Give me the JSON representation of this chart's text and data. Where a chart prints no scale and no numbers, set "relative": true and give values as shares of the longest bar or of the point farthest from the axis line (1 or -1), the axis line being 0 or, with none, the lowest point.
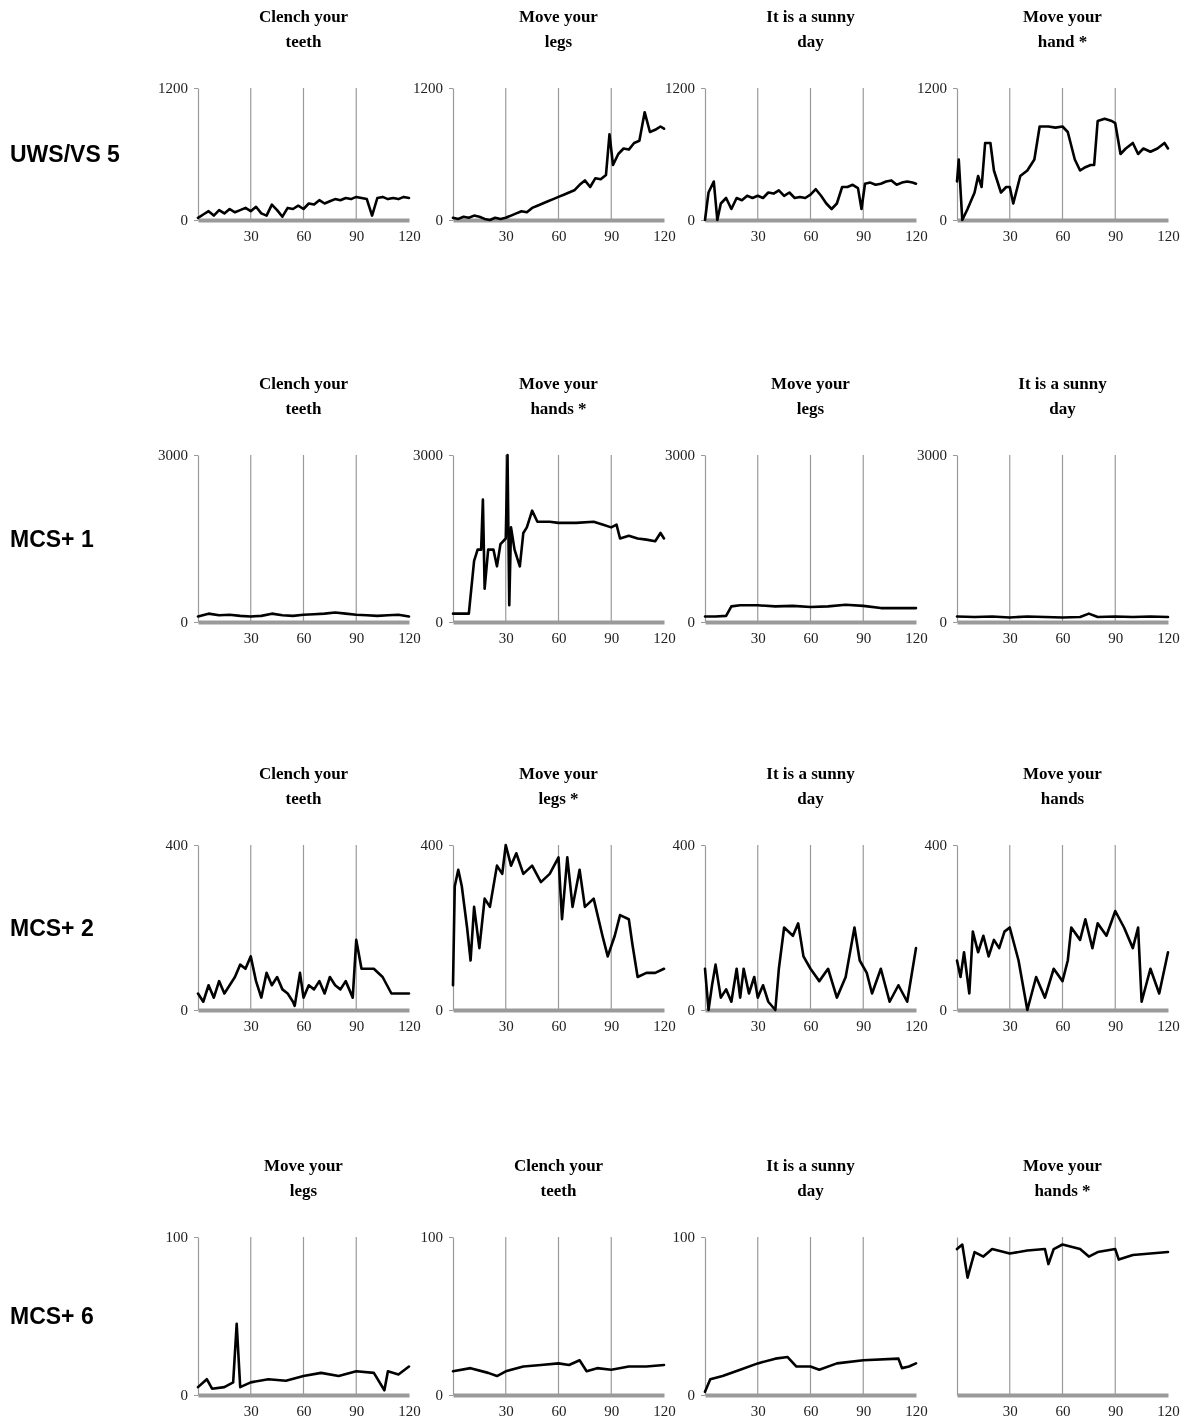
{
  "chart_data": [
    {
      "type": "line",
      "title": "Clench your teeth",
      "ylabel": "UWS/VS 5",
      "color": "#000000",
      "grid": "x",
      "xlim": [
        0,
        120
      ],
      "xticks": [
        30,
        60,
        90,
        120
      ],
      "ylim": [
        0,
        1200
      ],
      "yticks": [
        0,
        1200
      ],
      "x": [
        0,
        3,
        6,
        9,
        12,
        15,
        18,
        21,
        24,
        27,
        30,
        33,
        36,
        39,
        42,
        45,
        48,
        51,
        54,
        57,
        60,
        63,
        66,
        69,
        72,
        75,
        78,
        81,
        84,
        87,
        90,
        93,
        96,
        99,
        102,
        105,
        108,
        111,
        114,
        117,
        120
      ],
      "values": [
        20,
        50,
        80,
        40,
        90,
        60,
        100,
        70,
        90,
        110,
        80,
        120,
        60,
        40,
        140,
        90,
        30,
        110,
        100,
        130,
        100,
        150,
        140,
        180,
        150,
        170,
        190,
        180,
        200,
        190,
        210,
        200,
        190,
        40,
        200,
        210,
        190,
        200,
        190,
        210,
        200
      ]
    },
    {
      "type": "line",
      "title": "Move your legs",
      "color": "#000000",
      "grid": "x",
      "xlim": [
        0,
        120
      ],
      "xticks": [
        30,
        60,
        90,
        120
      ],
      "ylim": [
        0,
        1200
      ],
      "yticks": [
        0,
        1200
      ],
      "x": [
        0,
        3,
        6,
        9,
        12,
        15,
        18,
        21,
        24,
        27,
        30,
        33,
        36,
        39,
        42,
        45,
        48,
        51,
        54,
        57,
        60,
        63,
        66,
        69,
        72,
        75,
        78,
        81,
        84,
        87,
        89,
        91,
        94,
        97,
        100,
        103,
        106,
        109,
        112,
        115,
        118,
        120
      ],
      "values": [
        20,
        10,
        30,
        20,
        40,
        30,
        10,
        0,
        20,
        10,
        20,
        40,
        60,
        80,
        70,
        110,
        130,
        150,
        170,
        190,
        210,
        230,
        250,
        270,
        320,
        360,
        300,
        380,
        370,
        410,
        780,
        500,
        600,
        650,
        640,
        700,
        720,
        980,
        800,
        820,
        850,
        830
      ]
    },
    {
      "type": "line",
      "title": "It is a sunny day",
      "color": "#000000",
      "grid": "x",
      "xlim": [
        0,
        120
      ],
      "xticks": [
        30,
        60,
        90,
        120
      ],
      "ylim": [
        0,
        1200
      ],
      "yticks": [
        0,
        1200
      ],
      "x": [
        0,
        2,
        5,
        7,
        9,
        12,
        15,
        18,
        21,
        24,
        27,
        30,
        33,
        36,
        39,
        42,
        45,
        48,
        51,
        54,
        57,
        60,
        63,
        66,
        69,
        72,
        75,
        78,
        81,
        84,
        87,
        89,
        91,
        94,
        97,
        100,
        103,
        106,
        109,
        112,
        115,
        118,
        120
      ],
      "values": [
        0,
        250,
        350,
        0,
        150,
        200,
        100,
        200,
        180,
        220,
        200,
        220,
        200,
        250,
        240,
        270,
        220,
        250,
        200,
        210,
        200,
        230,
        280,
        220,
        150,
        100,
        150,
        300,
        300,
        320,
        290,
        100,
        330,
        340,
        320,
        330,
        350,
        360,
        320,
        340,
        350,
        340,
        330
      ]
    },
    {
      "type": "line",
      "title": "Move your hand  *",
      "color": "#000000",
      "grid": "x",
      "xlim": [
        0,
        120
      ],
      "xticks": [
        30,
        60,
        90,
        120
      ],
      "ylim": [
        0,
        1200
      ],
      "yticks": [
        0,
        1200
      ],
      "x": [
        0,
        1,
        3,
        6,
        10,
        12,
        14,
        16,
        19,
        21,
        25,
        28,
        30,
        32,
        36,
        40,
        44,
        47,
        52,
        56,
        60,
        63,
        67,
        70,
        73,
        76,
        78,
        80,
        84,
        88,
        90,
        93,
        96,
        100,
        103,
        106,
        110,
        114,
        118,
        120
      ],
      "values": [
        350,
        550,
        0,
        100,
        250,
        400,
        300,
        700,
        700,
        450,
        250,
        300,
        300,
        150,
        400,
        450,
        550,
        850,
        850,
        840,
        850,
        800,
        550,
        450,
        480,
        500,
        500,
        900,
        920,
        900,
        880,
        600,
        650,
        700,
        600,
        650,
        620,
        650,
        700,
        650
      ]
    },
    {
      "type": "line",
      "title": "Clench your teeth",
      "ylabel": "MCS+ 1",
      "color": "#000000",
      "grid": "x",
      "xlim": [
        0,
        120
      ],
      "xticks": [
        30,
        60,
        90,
        120
      ],
      "ylim": [
        0,
        3000
      ],
      "yticks": [
        0,
        3000
      ],
      "x": [
        0,
        6,
        12,
        18,
        24,
        30,
        36,
        42,
        48,
        54,
        60,
        66,
        72,
        78,
        84,
        90,
        96,
        102,
        108,
        114,
        120
      ],
      "values": [
        100,
        150,
        120,
        130,
        110,
        100,
        110,
        150,
        120,
        110,
        130,
        140,
        150,
        170,
        150,
        130,
        120,
        110,
        120,
        130,
        100
      ]
    },
    {
      "type": "line",
      "title": "Move your hands *",
      "color": "#000000",
      "grid": "x",
      "xlim": [
        0,
        120
      ],
      "xticks": [
        30,
        60,
        90,
        120
      ],
      "ylim": [
        0,
        3000
      ],
      "yticks": [
        0,
        3000
      ],
      "x": [
        0,
        5,
        9,
        12,
        14,
        16,
        17,
        18,
        20,
        23,
        25,
        27,
        30,
        31,
        32,
        33,
        35,
        38,
        40,
        42,
        45,
        48,
        55,
        60,
        70,
        80,
        85,
        90,
        93,
        95,
        100,
        105,
        110,
        115,
        118,
        120
      ],
      "values": [
        150,
        150,
        150,
        1100,
        1300,
        1300,
        2200,
        600,
        1300,
        1300,
        1000,
        1400,
        1500,
        3000,
        300,
        1700,
        1300,
        1000,
        1600,
        1700,
        2000,
        1800,
        1800,
        1780,
        1780,
        1800,
        1750,
        1700,
        1750,
        1500,
        1550,
        1500,
        1480,
        1450,
        1600,
        1500
      ]
    },
    {
      "type": "line",
      "title": "Move your legs",
      "color": "#000000",
      "grid": "x",
      "xlim": [
        0,
        120
      ],
      "xticks": [
        30,
        60,
        90,
        120
      ],
      "ylim": [
        0,
        3000
      ],
      "yticks": [
        0,
        3000
      ],
      "x": [
        0,
        6,
        12,
        15,
        20,
        30,
        40,
        50,
        60,
        70,
        80,
        90,
        100,
        110,
        120
      ],
      "values": [
        100,
        100,
        110,
        280,
        300,
        300,
        280,
        290,
        270,
        280,
        310,
        290,
        250,
        250,
        250
      ]
    },
    {
      "type": "line",
      "title": "It is a sunny day",
      "color": "#000000",
      "grid": "x",
      "xlim": [
        0,
        120
      ],
      "xticks": [
        30,
        60,
        90,
        120
      ],
      "ylim": [
        0,
        3000
      ],
      "yticks": [
        0,
        3000
      ],
      "x": [
        0,
        10,
        20,
        30,
        40,
        50,
        60,
        70,
        75,
        80,
        90,
        100,
        110,
        120
      ],
      "values": [
        100,
        90,
        100,
        80,
        100,
        90,
        80,
        90,
        150,
        90,
        100,
        90,
        100,
        90
      ]
    },
    {
      "type": "line",
      "title": "Clench your teeth",
      "ylabel": "MCS+ 2",
      "color": "#000000",
      "grid": "x",
      "xlim": [
        0,
        120
      ],
      "xticks": [
        30,
        60,
        90,
        120
      ],
      "ylim": [
        0,
        400
      ],
      "yticks": [
        0,
        400
      ],
      "x": [
        0,
        3,
        6,
        9,
        12,
        15,
        18,
        21,
        24,
        27,
        30,
        33,
        36,
        39,
        42,
        45,
        48,
        51,
        54,
        55,
        58,
        60,
        63,
        66,
        69,
        72,
        75,
        78,
        81,
        84,
        88,
        90,
        93,
        96,
        100,
        105,
        110,
        115,
        120
      ],
      "values": [
        40,
        20,
        60,
        30,
        70,
        40,
        60,
        80,
        110,
        100,
        130,
        70,
        30,
        90,
        60,
        80,
        50,
        40,
        20,
        10,
        90,
        30,
        60,
        50,
        70,
        40,
        80,
        60,
        50,
        70,
        30,
        170,
        100,
        100,
        100,
        80,
        40,
        40,
        40
      ]
    },
    {
      "type": "line",
      "title": "Move your legs *",
      "color": "#000000",
      "grid": "x",
      "xlim": [
        0,
        120
      ],
      "xticks": [
        30,
        60,
        90,
        120
      ],
      "ylim": [
        0,
        400
      ],
      "yticks": [
        0,
        400
      ],
      "x": [
        0,
        1,
        3,
        5,
        8,
        10,
        12,
        15,
        18,
        21,
        25,
        28,
        30,
        33,
        36,
        40,
        45,
        50,
        55,
        60,
        62,
        65,
        68,
        72,
        75,
        80,
        85,
        88,
        92,
        95,
        100,
        102,
        105,
        110,
        115,
        120
      ],
      "values": [
        60,
        300,
        340,
        300,
        200,
        120,
        250,
        150,
        270,
        250,
        350,
        330,
        400,
        350,
        380,
        330,
        350,
        310,
        330,
        370,
        220,
        370,
        250,
        340,
        250,
        270,
        180,
        130,
        180,
        230,
        220,
        160,
        80,
        90,
        90,
        100
      ]
    },
    {
      "type": "line",
      "title": "It is a sunny day",
      "color": "#000000",
      "grid": "x",
      "xlim": [
        0,
        120
      ],
      "xticks": [
        30,
        60,
        90,
        120
      ],
      "ylim": [
        0,
        400
      ],
      "yticks": [
        0,
        400
      ],
      "x": [
        0,
        2,
        4,
        6,
        9,
        12,
        15,
        18,
        20,
        22,
        25,
        28,
        30,
        33,
        36,
        40,
        42,
        45,
        50,
        53,
        56,
        60,
        65,
        70,
        75,
        80,
        85,
        88,
        92,
        95,
        100,
        105,
        110,
        115,
        120
      ],
      "values": [
        100,
        0,
        60,
        110,
        30,
        50,
        20,
        100,
        30,
        100,
        40,
        80,
        30,
        60,
        20,
        0,
        100,
        200,
        180,
        210,
        130,
        100,
        70,
        100,
        30,
        80,
        200,
        120,
        90,
        40,
        100,
        20,
        60,
        20,
        150
      ]
    },
    {
      "type": "line",
      "title": "Move your hands",
      "color": "#000000",
      "grid": "x",
      "xlim": [
        0,
        120
      ],
      "xticks": [
        30,
        60,
        90,
        120
      ],
      "ylim": [
        0,
        400
      ],
      "yticks": [
        0,
        400
      ],
      "x": [
        0,
        2,
        4,
        7,
        9,
        12,
        15,
        18,
        21,
        24,
        27,
        30,
        35,
        40,
        45,
        50,
        55,
        60,
        63,
        65,
        70,
        73,
        77,
        80,
        85,
        90,
        95,
        100,
        103,
        105,
        110,
        115,
        120
      ],
      "values": [
        120,
        80,
        140,
        40,
        190,
        140,
        180,
        130,
        170,
        150,
        190,
        200,
        120,
        0,
        80,
        30,
        100,
        70,
        120,
        200,
        170,
        220,
        150,
        210,
        180,
        240,
        200,
        150,
        200,
        20,
        100,
        40,
        140
      ]
    },
    {
      "type": "line",
      "title": "Move your legs",
      "ylabel": "MCS+ 6",
      "color": "#000000",
      "grid": "x",
      "xlim": [
        0,
        120
      ],
      "xticks": [
        30,
        60,
        90,
        120
      ],
      "ylim": [
        0,
        100
      ],
      "yticks": [
        0,
        100
      ],
      "x": [
        0,
        5,
        8,
        15,
        20,
        22,
        24,
        30,
        40,
        50,
        60,
        70,
        80,
        90,
        100,
        106,
        108,
        114,
        120
      ],
      "values": [
        5,
        10,
        4,
        5,
        8,
        45,
        5,
        8,
        10,
        9,
        12,
        14,
        12,
        15,
        14,
        3,
        15,
        13,
        18
      ]
    },
    {
      "type": "line",
      "title": "Clench your teeth",
      "color": "#000000",
      "grid": "x",
      "xlim": [
        0,
        120
      ],
      "xticks": [
        30,
        60,
        90,
        120
      ],
      "ylim": [
        0,
        100
      ],
      "yticks": [
        0,
        100
      ],
      "x": [
        0,
        10,
        20,
        25,
        30,
        40,
        50,
        60,
        66,
        72,
        76,
        82,
        90,
        100,
        110,
        120
      ],
      "values": [
        15,
        17,
        14,
        12,
        15,
        18,
        19,
        20,
        19,
        22,
        15,
        17,
        16,
        18,
        18,
        19
      ]
    },
    {
      "type": "line",
      "title": "It is a sunny day",
      "color": "#000000",
      "grid": "x",
      "xlim": [
        0,
        120
      ],
      "xticks": [
        30,
        60,
        90,
        120
      ],
      "ylim": [
        0,
        100
      ],
      "yticks": [
        0,
        100
      ],
      "x": [
        0,
        3,
        10,
        20,
        30,
        40,
        47,
        52,
        60,
        65,
        75,
        90,
        110,
        112,
        116,
        120
      ],
      "values": [
        2,
        10,
        12,
        16,
        20,
        23,
        24,
        18,
        18,
        16,
        20,
        22,
        23,
        17,
        18,
        20
      ]
    },
    {
      "type": "line",
      "title": "Move your hands *",
      "color": "#000000",
      "grid": "x",
      "xlim": [
        0,
        120
      ],
      "xticks": [
        30,
        60,
        90,
        120
      ],
      "relative": true,
      "x": [
        0,
        3,
        6,
        10,
        15,
        20,
        30,
        40,
        50,
        52,
        55,
        60,
        70,
        75,
        80,
        90,
        92,
        100,
        110,
        120
      ],
      "values": [
        0.97,
        1,
        0.78,
        0.95,
        0.92,
        0.97,
        0.94,
        0.96,
        0.97,
        0.87,
        0.97,
        1,
        0.97,
        0.92,
        0.95,
        0.97,
        0.9,
        0.93,
        0.94,
        0.95
      ]
    }
  ]
}
